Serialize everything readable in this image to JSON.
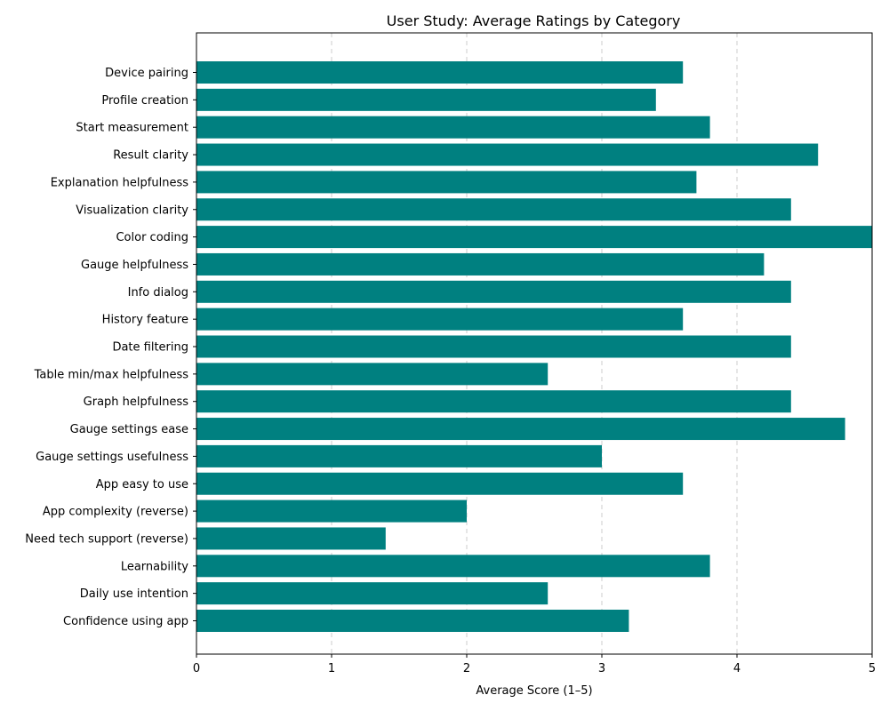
{
  "chart_data": {
    "type": "bar",
    "orientation": "horizontal",
    "title": "User Study: Average Ratings by Category",
    "xlabel": "Average Score (1–5)",
    "ylabel": "",
    "xlim": [
      0,
      5
    ],
    "xticks": [
      0,
      1,
      2,
      3,
      4,
      5
    ],
    "grid": "x dashed",
    "bar_color": "#008080",
    "categories": [
      "Device pairing",
      "Profile creation",
      "Start measurement",
      "Result clarity",
      "Explanation helpfulness",
      "Visualization clarity",
      "Color coding",
      "Gauge helpfulness",
      "Info dialog",
      "History feature",
      "Date filtering",
      "Table min/max helpfulness",
      "Graph helpfulness",
      "Gauge settings ease",
      "Gauge settings usefulness",
      "App easy to use",
      "App complexity (reverse)",
      "Need tech support (reverse)",
      "Learnability",
      "Daily use intention",
      "Confidence using app"
    ],
    "values": [
      3.6,
      3.4,
      3.8,
      4.6,
      3.7,
      4.4,
      5.0,
      4.2,
      4.4,
      3.6,
      4.4,
      2.6,
      4.4,
      4.8,
      3.0,
      3.6,
      2.0,
      1.4,
      3.8,
      2.6,
      3.2
    ]
  }
}
